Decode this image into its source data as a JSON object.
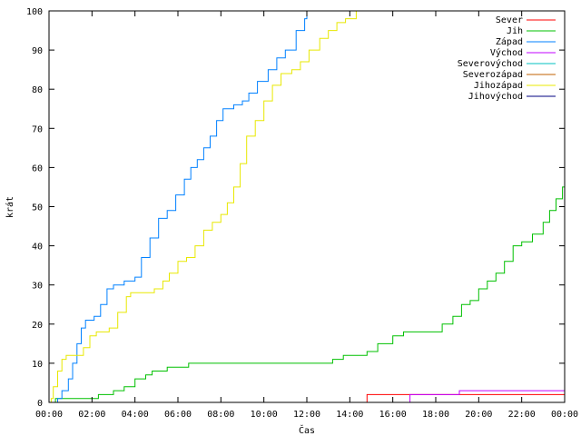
{
  "chart_data": {
    "type": "line",
    "xlabel": "Čas",
    "ylabel": "krát",
    "xlim": [
      0,
      24
    ],
    "ylim": [
      0,
      100
    ],
    "grid": false,
    "legend_placement": "top-right",
    "x_ticks": [
      0,
      2,
      4,
      6,
      8,
      10,
      12,
      14,
      16,
      18,
      20,
      22,
      24
    ],
    "x_tick_labels": [
      "00:00",
      "02:00",
      "04:00",
      "06:00",
      "08:00",
      "10:00",
      "12:00",
      "14:00",
      "16:00",
      "18:00",
      "20:00",
      "22:00",
      "00:00"
    ],
    "y_ticks": [
      0,
      10,
      20,
      30,
      40,
      50,
      60,
      70,
      80,
      90,
      100
    ],
    "y_tick_labels": [
      "0",
      "10",
      "20",
      "30",
      "40",
      "50",
      "60",
      "70",
      "80",
      "90",
      "100"
    ],
    "series": [
      {
        "name": "Sever",
        "color": "#ff0000",
        "points": [
          [
            0,
            0
          ],
          [
            14.8,
            0
          ],
          [
            14.8,
            2
          ],
          [
            24,
            2
          ]
        ]
      },
      {
        "name": "Jih",
        "color": "#00c000",
        "points": [
          [
            0,
            0
          ],
          [
            0.3,
            0
          ],
          [
            0.3,
            1
          ],
          [
            2.0,
            1
          ],
          [
            2.3,
            2
          ],
          [
            3.0,
            3
          ],
          [
            3.5,
            4
          ],
          [
            4.0,
            6
          ],
          [
            4.5,
            7
          ],
          [
            4.8,
            8
          ],
          [
            5.5,
            9
          ],
          [
            6.5,
            9
          ],
          [
            6.5,
            10
          ],
          [
            12.8,
            10
          ],
          [
            13.2,
            11
          ],
          [
            13.7,
            12
          ],
          [
            14.8,
            12
          ],
          [
            14.8,
            13
          ],
          [
            15.3,
            15
          ],
          [
            16.0,
            17
          ],
          [
            16.5,
            18
          ],
          [
            17.8,
            18
          ],
          [
            18.3,
            20
          ],
          [
            18.8,
            22
          ],
          [
            19.2,
            25
          ],
          [
            19.6,
            26
          ],
          [
            20.0,
            29
          ],
          [
            20.4,
            31
          ],
          [
            20.8,
            33
          ],
          [
            21.2,
            36
          ],
          [
            21.6,
            40
          ],
          [
            22.0,
            41
          ],
          [
            22.5,
            43
          ],
          [
            23.0,
            46
          ],
          [
            23.3,
            49
          ],
          [
            23.6,
            52
          ],
          [
            23.9,
            55
          ],
          [
            24.0,
            57
          ]
        ]
      },
      {
        "name": "Západ",
        "color": "#0080ff",
        "points": [
          [
            0,
            0
          ],
          [
            0.3,
            0
          ],
          [
            0.4,
            1
          ],
          [
            0.6,
            3
          ],
          [
            0.9,
            6
          ],
          [
            1.1,
            10
          ],
          [
            1.3,
            15
          ],
          [
            1.5,
            19
          ],
          [
            1.7,
            21
          ],
          [
            2.1,
            22
          ],
          [
            2.4,
            25
          ],
          [
            2.7,
            29
          ],
          [
            3.0,
            30
          ],
          [
            3.5,
            31
          ],
          [
            4.0,
            32
          ],
          [
            4.3,
            37
          ],
          [
            4.7,
            42
          ],
          [
            5.1,
            47
          ],
          [
            5.5,
            49
          ],
          [
            5.9,
            53
          ],
          [
            6.3,
            57
          ],
          [
            6.6,
            60
          ],
          [
            6.9,
            62
          ],
          [
            7.2,
            65
          ],
          [
            7.5,
            68
          ],
          [
            7.8,
            72
          ],
          [
            8.1,
            75
          ],
          [
            8.6,
            76
          ],
          [
            9.0,
            77
          ],
          [
            9.3,
            79
          ],
          [
            9.7,
            82
          ],
          [
            10.2,
            85
          ],
          [
            10.6,
            88
          ],
          [
            11.0,
            90
          ],
          [
            11.5,
            95
          ],
          [
            11.9,
            98
          ],
          [
            12.0,
            100
          ]
        ]
      },
      {
        "name": "Východ",
        "color": "#c000ff",
        "points": [
          [
            0,
            0
          ],
          [
            16.8,
            0
          ],
          [
            16.8,
            2
          ],
          [
            19.1,
            2
          ],
          [
            19.1,
            3
          ],
          [
            24,
            3
          ]
        ]
      },
      {
        "name": "Severovýchod",
        "color": "#00c0c0",
        "points": []
      },
      {
        "name": "Severozápad",
        "color": "#c06000",
        "points": []
      },
      {
        "name": "Jihozápad",
        "color": "#e8e800",
        "points": [
          [
            0,
            0
          ],
          [
            0.1,
            1
          ],
          [
            0.2,
            4
          ],
          [
            0.4,
            8
          ],
          [
            0.6,
            11
          ],
          [
            0.8,
            12
          ],
          [
            1.3,
            12
          ],
          [
            1.6,
            14
          ],
          [
            1.9,
            17
          ],
          [
            2.2,
            18
          ],
          [
            2.8,
            19
          ],
          [
            3.2,
            23
          ],
          [
            3.6,
            27
          ],
          [
            3.8,
            28
          ],
          [
            4.6,
            28
          ],
          [
            4.9,
            29
          ],
          [
            5.3,
            31
          ],
          [
            5.6,
            33
          ],
          [
            6.0,
            36
          ],
          [
            6.4,
            37
          ],
          [
            6.8,
            40
          ],
          [
            7.2,
            44
          ],
          [
            7.6,
            46
          ],
          [
            8.0,
            48
          ],
          [
            8.3,
            51
          ],
          [
            8.6,
            55
          ],
          [
            8.9,
            61
          ],
          [
            9.2,
            68
          ],
          [
            9.6,
            72
          ],
          [
            10.0,
            77
          ],
          [
            10.4,
            81
          ],
          [
            10.8,
            84
          ],
          [
            11.3,
            85
          ],
          [
            11.7,
            87
          ],
          [
            12.1,
            90
          ],
          [
            12.6,
            93
          ],
          [
            13.0,
            95
          ],
          [
            13.4,
            97
          ],
          [
            13.8,
            98
          ],
          [
            14.3,
            100
          ]
        ]
      },
      {
        "name": "Jihovýchod",
        "color": "#000080",
        "points": []
      }
    ]
  }
}
